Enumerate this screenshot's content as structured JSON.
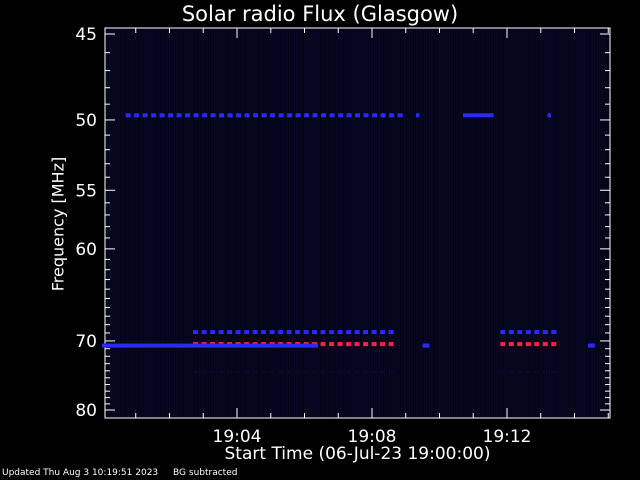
{
  "chart_data": {
    "type": "heatmap",
    "title": "Solar radio Flux (Glasgow)",
    "ylabel": "Frequency [MHz]",
    "xlabel": "Start Time (06-Jul-23 19:00:00)",
    "y_ticks": [
      45,
      50,
      55,
      60,
      70,
      80
    ],
    "x_ticks": [
      {
        "value": 4,
        "label": "19:04"
      },
      {
        "value": 8,
        "label": "19:08"
      },
      {
        "value": 12,
        "label": "19:12"
      }
    ],
    "xlim_minutes": [
      0,
      15
    ],
    "grid": false,
    "colors": {
      "background": "#000000",
      "low": "#0a0a2e",
      "medium": "#2a2aff",
      "high": "#ff2244"
    },
    "bands": [
      {
        "freq_mhz": 49.7,
        "intensity": "medium",
        "segments": [
          [
            0.7,
            8.8
          ],
          [
            9.3,
            9.4
          ],
          [
            10.7,
            11.6
          ],
          [
            13.2,
            13.3
          ]
        ]
      },
      {
        "freq_mhz": 68.9,
        "intensity": "medium",
        "segments": [
          [
            2.7,
            8.5
          ],
          [
            11.8,
            13.5
          ]
        ]
      },
      {
        "freq_mhz": 70.4,
        "intensity": "high",
        "segments": [
          [
            2.7,
            8.5
          ],
          [
            11.8,
            13.5
          ]
        ]
      },
      {
        "freq_mhz": 70.6,
        "intensity": "medium",
        "segments": [
          [
            0.0,
            6.4
          ],
          [
            9.5,
            9.7
          ],
          [
            14.4,
            14.6
          ]
        ]
      },
      {
        "freq_mhz": 74.2,
        "intensity": "low",
        "segments": [
          [
            2.7,
            8.5
          ],
          [
            11.8,
            13.5
          ]
        ]
      }
    ]
  },
  "footer": {
    "updated": "Updated Thu Aug  3 10:19:51 2023",
    "note": "BG subtracted"
  }
}
